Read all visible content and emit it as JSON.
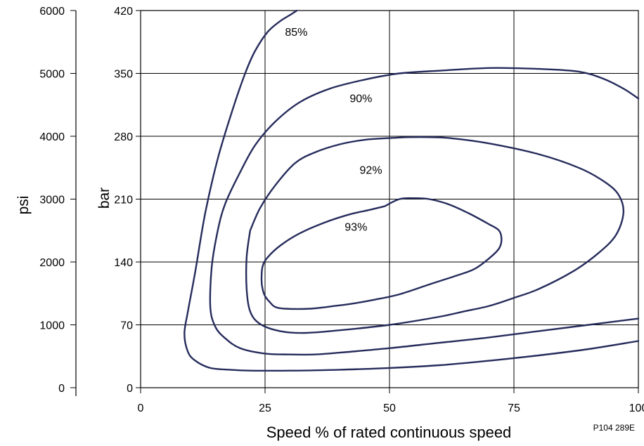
{
  "chart_data": {
    "type": "line",
    "xlabel": "Speed % of rated continuous speed",
    "ylabel_left": "psi",
    "ylabel_right": "bar",
    "figure_code": "P104 289E",
    "xlim": [
      0,
      100
    ],
    "ylim_bar": [
      0,
      420
    ],
    "ylim_psi": [
      0,
      6000
    ],
    "x_ticks": [
      "0",
      "25",
      "50",
      "75",
      "100"
    ],
    "bar_ticks": [
      "0",
      "70",
      "140",
      "210",
      "280",
      "350",
      "420"
    ],
    "psi_ticks": [
      "0",
      "1000",
      "2000",
      "3000",
      "4000",
      "5000",
      "6000"
    ],
    "grid": true,
    "series": [
      {
        "name": "85%",
        "label_at": [
          29,
          392
        ],
        "points": [
          [
            31.4,
            420
          ],
          [
            30,
            415
          ],
          [
            28,
            408
          ],
          [
            25.5,
            396
          ],
          [
            23,
            375
          ],
          [
            21,
            350
          ],
          [
            18.5,
            310
          ],
          [
            15.5,
            255
          ],
          [
            13,
            195
          ],
          [
            11,
            130
          ],
          [
            9.5,
            85
          ],
          [
            8.8,
            60
          ],
          [
            9.5,
            40
          ],
          [
            11,
            30
          ],
          [
            14,
            22
          ],
          [
            18,
            20
          ],
          [
            22,
            19
          ],
          [
            30,
            19
          ],
          [
            40,
            20
          ],
          [
            50,
            22
          ],
          [
            60,
            25
          ],
          [
            70,
            30
          ],
          [
            80,
            36
          ],
          [
            90,
            43
          ],
          [
            100,
            52
          ]
        ]
      },
      {
        "name": "90%",
        "label_at": [
          42,
          318
        ],
        "points": [
          [
            100,
            322
          ],
          [
            97,
            333
          ],
          [
            93,
            344
          ],
          [
            88,
            352
          ],
          [
            80,
            355
          ],
          [
            70,
            356
          ],
          [
            60,
            353
          ],
          [
            52,
            350
          ],
          [
            45,
            343
          ],
          [
            38,
            333
          ],
          [
            32,
            318
          ],
          [
            27,
            296
          ],
          [
            23,
            270
          ],
          [
            20,
            240
          ],
          [
            17,
            205
          ],
          [
            15.5,
            175
          ],
          [
            14.3,
            135
          ],
          [
            14,
            90
          ],
          [
            15,
            68
          ],
          [
            17,
            55
          ],
          [
            20,
            44
          ],
          [
            25,
            38
          ],
          [
            30,
            37
          ],
          [
            35,
            37
          ],
          [
            40,
            39
          ],
          [
            50,
            44
          ],
          [
            60,
            50
          ],
          [
            70,
            56
          ],
          [
            80,
            63
          ],
          [
            90,
            70
          ],
          [
            100,
            77
          ]
        ]
      },
      {
        "name": "92%",
        "label_at": [
          44,
          238
        ],
        "points": [
          [
            22,
            175
          ],
          [
            24,
            200
          ],
          [
            27,
            225
          ],
          [
            31,
            250
          ],
          [
            35,
            262
          ],
          [
            40,
            271
          ],
          [
            45,
            276
          ],
          [
            50,
            278
          ],
          [
            54,
            279
          ],
          [
            58,
            279
          ],
          [
            62,
            278
          ],
          [
            70,
            272
          ],
          [
            80,
            260
          ],
          [
            88,
            245
          ],
          [
            93,
            230
          ],
          [
            96,
            215
          ],
          [
            97,
            195
          ],
          [
            95.5,
            170
          ],
          [
            92,
            150
          ],
          [
            87,
            130
          ],
          [
            80,
            110
          ],
          [
            75,
            100
          ],
          [
            70,
            91
          ],
          [
            65,
            85
          ],
          [
            60,
            79
          ],
          [
            50,
            70
          ],
          [
            40,
            64
          ],
          [
            33,
            61
          ],
          [
            28,
            63
          ],
          [
            24,
            71
          ],
          [
            22,
            85
          ],
          [
            21.3,
            110
          ],
          [
            21.3,
            145
          ],
          [
            22,
            175
          ]
        ]
      },
      {
        "name": "93%",
        "label_at": [
          41,
          175
        ],
        "points": [
          [
            49,
            202
          ],
          [
            52,
            210
          ],
          [
            55,
            211
          ],
          [
            58,
            210
          ],
          [
            62,
            204
          ],
          [
            66,
            194
          ],
          [
            70,
            182
          ],
          [
            72,
            175
          ],
          [
            72.5,
            165
          ],
          [
            72,
            155
          ],
          [
            70,
            144
          ],
          [
            67,
            132
          ],
          [
            63,
            124
          ],
          [
            58,
            115
          ],
          [
            52,
            104
          ],
          [
            47,
            98
          ],
          [
            43,
            94
          ],
          [
            39,
            91
          ],
          [
            34,
            88
          ],
          [
            29,
            88
          ],
          [
            27,
            90
          ],
          [
            26,
            95
          ],
          [
            25,
            102
          ],
          [
            24.5,
            110
          ],
          [
            24.3,
            120
          ],
          [
            24.5,
            135
          ],
          [
            25.5,
            145
          ],
          [
            28,
            158
          ],
          [
            32,
            172
          ],
          [
            37,
            184
          ],
          [
            42,
            193
          ],
          [
            46,
            198
          ],
          [
            49,
            202
          ]
        ]
      }
    ]
  }
}
